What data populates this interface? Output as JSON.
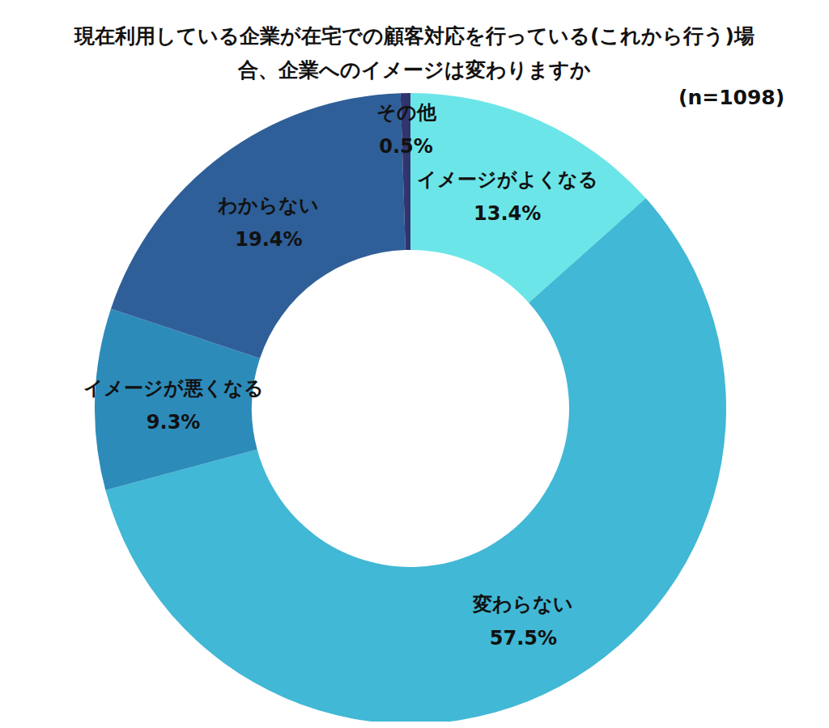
{
  "chart_data": {
    "type": "donut",
    "title": "現在利用している企業が在宅での顧客対応を行っている(これから行う)場\n合、企業へのイメージは変わりますか",
    "annotation": "(n=1098)",
    "categories": [
      "イメージがよくなる",
      "変わらない",
      "イメージが悪くなる",
      "わからない",
      "その他"
    ],
    "values": [
      13.4,
      57.5,
      9.3,
      19.4,
      0.5
    ],
    "value_labels": [
      "13.4%",
      "57.5%",
      "9.3%",
      "19.4%",
      "0.5%"
    ],
    "colors": [
      "#6ce5e8",
      "#41b8d5",
      "#2d8bba",
      "#2f5f98",
      "#31356e"
    ],
    "data_labels": true
  }
}
